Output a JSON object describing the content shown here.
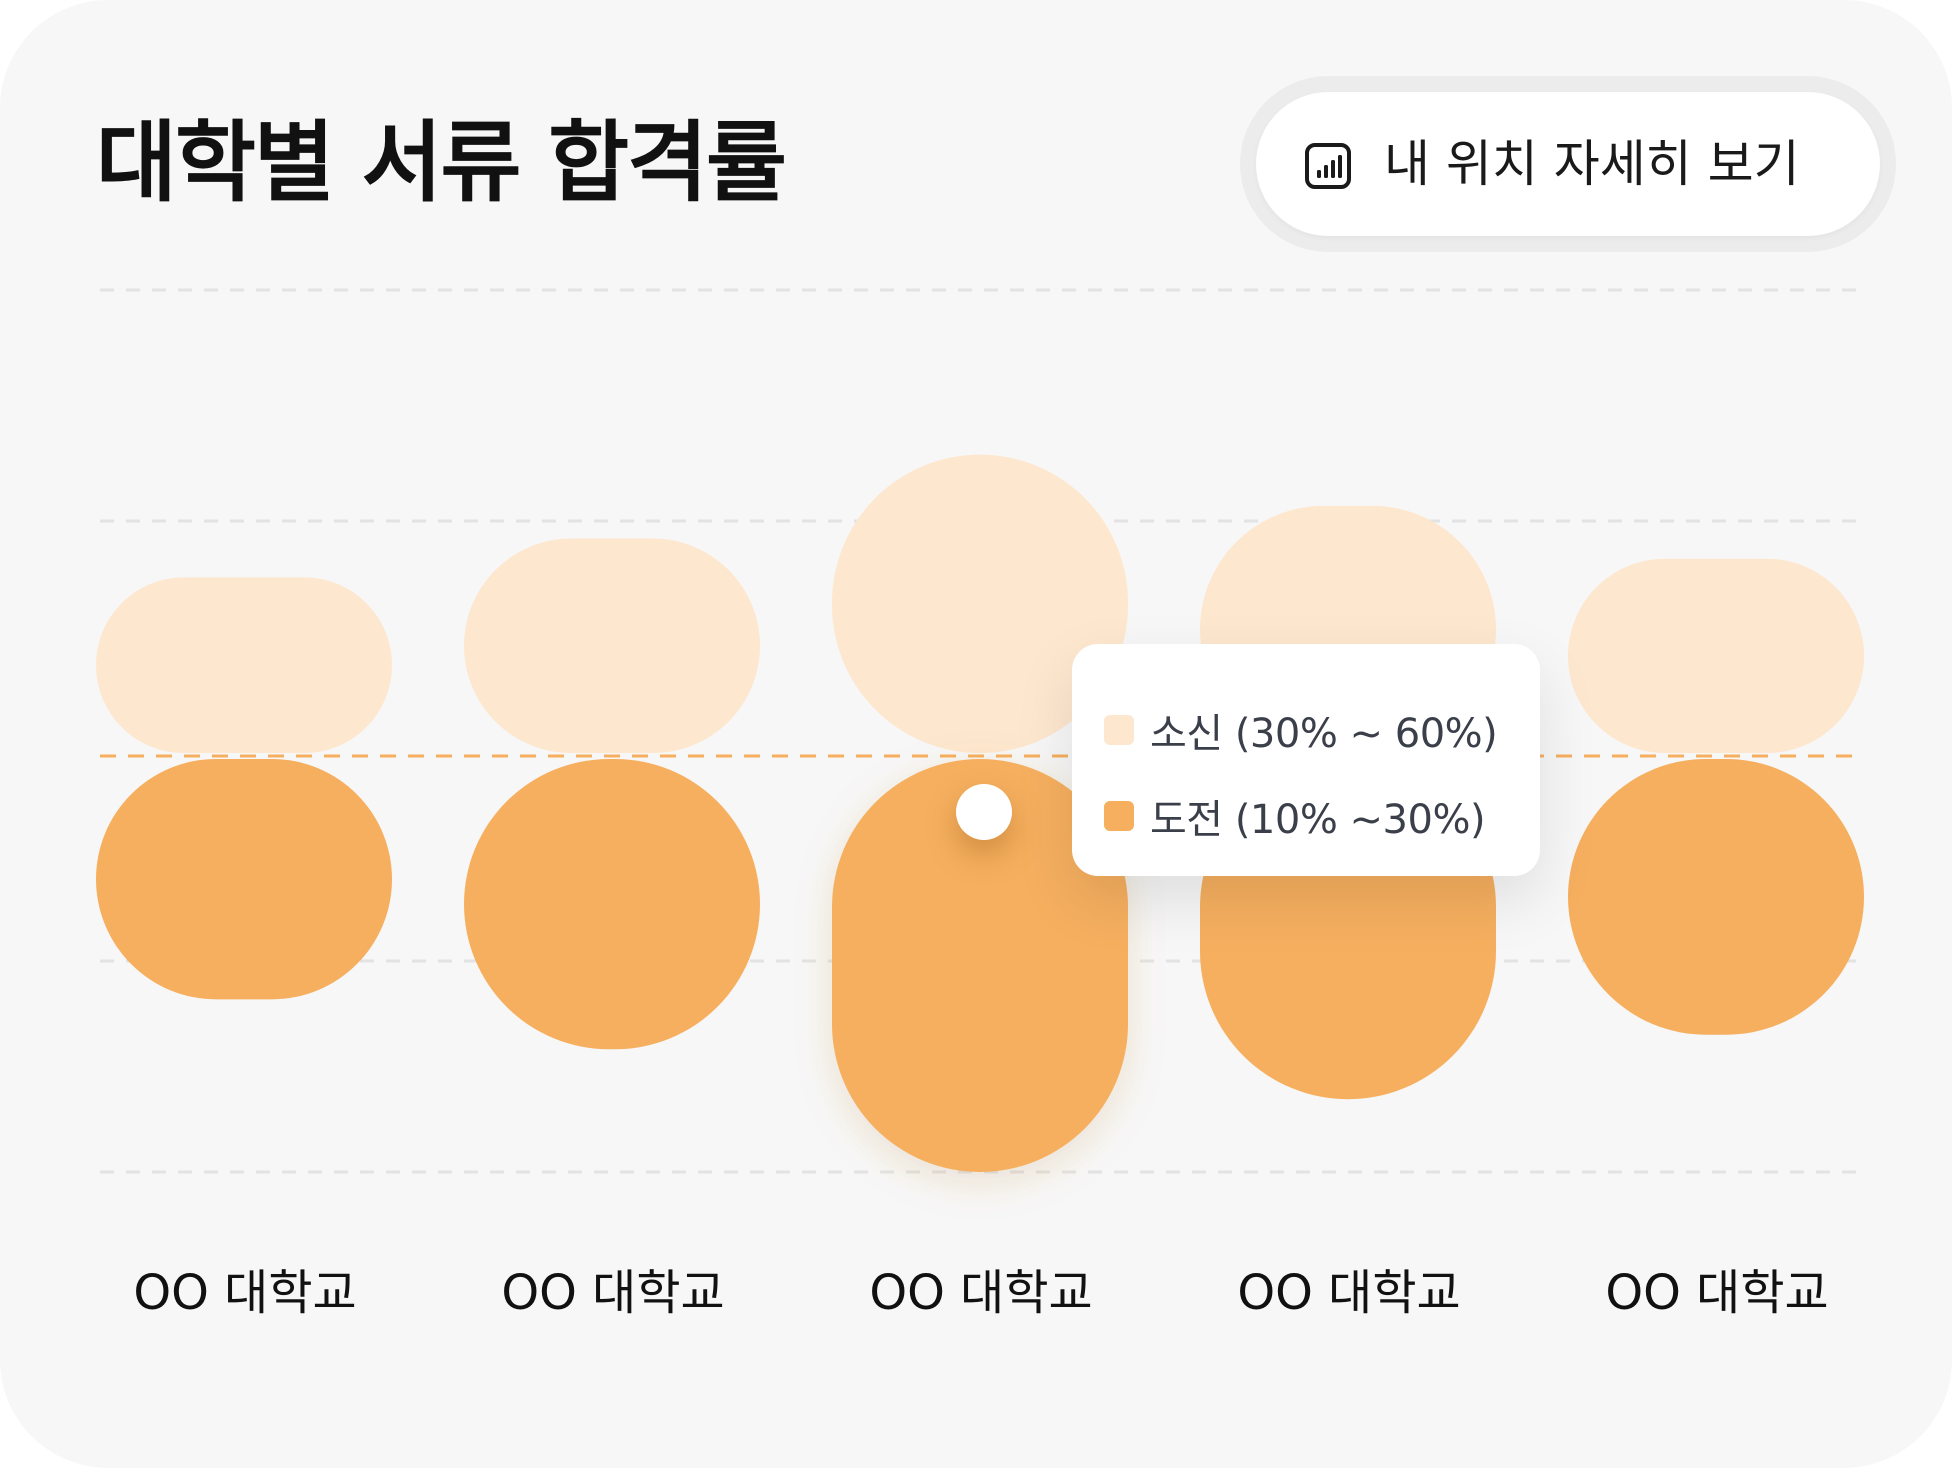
{
  "title": "대학별 서류 합격률",
  "detail_button": {
    "label": "내 위치 자세히 보기",
    "icon": "bar-chart-icon"
  },
  "tooltip": {
    "items": [
      {
        "label": "소신 (30% ~ 60%)",
        "color": "#fde7cf"
      },
      {
        "label": "도전 (10% ~30%)",
        "color": "#f6af5f"
      }
    ]
  },
  "colors": {
    "background": "#f7f7f7",
    "safe": "#fde7cf",
    "challenge": "#f6af5f",
    "threshold_line": "#f6af5f",
    "gridline": "#e3e3e3"
  },
  "chart_data": {
    "type": "bar",
    "title": "대학별 서류 합격률",
    "categories": [
      "OO 대학교",
      "OO 대학교",
      "OO 대학교",
      "OO 대학교",
      "OO 대학교"
    ],
    "series": [
      {
        "name": "소신",
        "range_label": "30% ~ 60%",
        "values": [
          {
            "low": 30,
            "high": 41.5
          },
          {
            "low": 30,
            "high": 44.0
          },
          {
            "low": 30,
            "high": 49.4
          },
          {
            "low": 30,
            "high": 46.1
          },
          {
            "low": 30,
            "high": 42.7
          }
        ]
      },
      {
        "name": "도전",
        "range_label": "10% ~30%",
        "values": [
          {
            "low": 18.3,
            "high": 30
          },
          {
            "low": 15.9,
            "high": 30
          },
          {
            "low": 10.0,
            "high": 30
          },
          {
            "low": 13.5,
            "high": 30
          },
          {
            "low": 16.6,
            "high": 30
          }
        ]
      }
    ],
    "threshold": 30,
    "ylim": [
      10,
      60
    ],
    "grid": true,
    "legend": "tooltip-center"
  }
}
